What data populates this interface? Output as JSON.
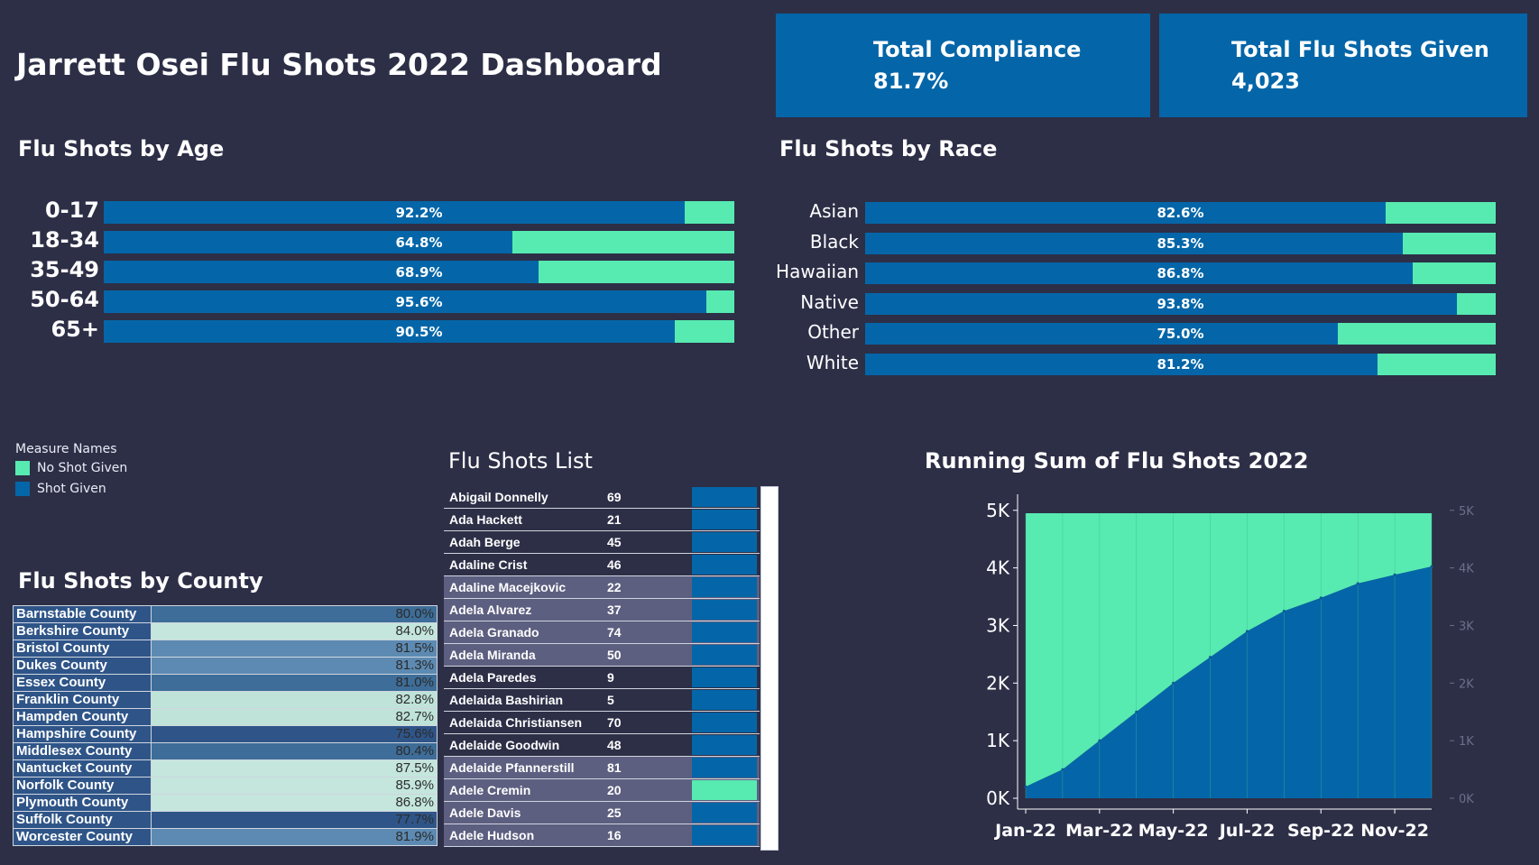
{
  "header": {
    "title": "Jarrett Osei Flu Shots 2022 Dashboard"
  },
  "kpis": [
    {
      "label": "Total Compliance",
      "value": "81.7%"
    },
    {
      "label": "Total Flu Shots Given",
      "value": "4,023"
    }
  ],
  "colors": {
    "background": "#2d2f47",
    "shot_given": "#0466a8",
    "no_shot_given": "#57eab1"
  },
  "age": {
    "title": "Flu Shots by Age",
    "rows": [
      {
        "label": "0-17",
        "value": 92.2,
        "text": "92.2%"
      },
      {
        "label": "18-34",
        "value": 64.8,
        "text": "64.8%"
      },
      {
        "label": "35-49",
        "value": 68.9,
        "text": "68.9%"
      },
      {
        "label": "50-64",
        "value": 95.6,
        "text": "95.6%"
      },
      {
        "label": "65+",
        "value": 90.5,
        "text": "90.5%"
      }
    ]
  },
  "race": {
    "title": "Flu Shots by Race",
    "rows": [
      {
        "label": "Asian",
        "value": 82.6,
        "text": "82.6%"
      },
      {
        "label": "Black",
        "value": 85.3,
        "text": "85.3%"
      },
      {
        "label": "Hawaiian",
        "value": 86.8,
        "text": "86.8%"
      },
      {
        "label": "Native",
        "value": 93.8,
        "text": "93.8%"
      },
      {
        "label": "Other",
        "value": 75.0,
        "text": "75.0%"
      },
      {
        "label": "White",
        "value": 81.2,
        "text": "81.2%"
      }
    ]
  },
  "legend": {
    "title": "Measure Names",
    "items": [
      {
        "label": "No Shot Given",
        "color": "#57eab1"
      },
      {
        "label": "Shot Given",
        "color": "#0466a8"
      }
    ]
  },
  "county": {
    "title": "Flu Shots by County",
    "rows": [
      {
        "name": "Barnstable County",
        "value": "80.0%"
      },
      {
        "name": "Berkshire County",
        "value": "84.0%"
      },
      {
        "name": "Bristol County",
        "value": "81.5%"
      },
      {
        "name": "Dukes County",
        "value": "81.3%"
      },
      {
        "name": "Essex County",
        "value": "81.0%"
      },
      {
        "name": "Franklin County",
        "value": "82.8%"
      },
      {
        "name": "Hampden County",
        "value": "82.7%"
      },
      {
        "name": "Hampshire County",
        "value": "75.6%"
      },
      {
        "name": "Middlesex County",
        "value": "80.4%"
      },
      {
        "name": "Nantucket County",
        "value": "87.5%"
      },
      {
        "name": "Norfolk County",
        "value": "85.9%"
      },
      {
        "name": "Plymouth County",
        "value": "86.8%"
      },
      {
        "name": "Suffolk County",
        "value": "77.7%"
      },
      {
        "name": "Worcester County",
        "value": "81.9%"
      }
    ]
  },
  "list": {
    "title": "Flu Shots List",
    "rows": [
      {
        "name": "Abigail Donnelly",
        "age": "69",
        "status": "given"
      },
      {
        "name": "Ada Hackett",
        "age": "21",
        "status": "given"
      },
      {
        "name": "Adah Berge",
        "age": "45",
        "status": "given"
      },
      {
        "name": "Adaline Crist",
        "age": "46",
        "status": "given"
      },
      {
        "name": "Adaline Macejkovic",
        "age": "22",
        "status": "given"
      },
      {
        "name": "Adela Alvarez",
        "age": "37",
        "status": "given"
      },
      {
        "name": "Adela Granado",
        "age": "74",
        "status": "given"
      },
      {
        "name": "Adela Miranda",
        "age": "50",
        "status": "given"
      },
      {
        "name": "Adela Paredes",
        "age": "9",
        "status": "given"
      },
      {
        "name": "Adelaida Bashirian",
        "age": "5",
        "status": "given"
      },
      {
        "name": "Adelaida Christiansen",
        "age": "70",
        "status": "given"
      },
      {
        "name": "Adelaide Goodwin",
        "age": "48",
        "status": "given"
      },
      {
        "name": "Adelaide Pfannerstill",
        "age": "81",
        "status": "given"
      },
      {
        "name": "Adele Cremin",
        "age": "20",
        "status": "not_given"
      },
      {
        "name": "Adele Davis",
        "age": "25",
        "status": "given"
      },
      {
        "name": "Adele Hudson",
        "age": "16",
        "status": "given"
      }
    ]
  },
  "running": {
    "title": "Running Sum of Flu Shots 2022",
    "y_ticks": [
      "0K",
      "1K",
      "2K",
      "3K",
      "4K",
      "5K"
    ],
    "x_ticks": [
      "Jan-22",
      "Mar-22",
      "May-22",
      "Jul-22",
      "Sep-22",
      "Nov-22"
    ]
  },
  "chart_data": {
    "type": "area",
    "title": "Running Sum of Flu Shots 2022",
    "x": [
      "Jan-22",
      "Feb-22",
      "Mar-22",
      "Apr-22",
      "May-22",
      "Jun-22",
      "Jul-22",
      "Aug-22",
      "Sep-22",
      "Oct-22",
      "Nov-22",
      "Dec-22"
    ],
    "series": [
      {
        "name": "Shot Given",
        "values": [
          200,
          500,
          1000,
          1500,
          2000,
          2450,
          2900,
          3250,
          3480,
          3730,
          3880,
          4023
        ]
      },
      {
        "name": "No Shot Given",
        "values": [
          4950,
          4950,
          4950,
          4950,
          4950,
          4950,
          4950,
          4950,
          4950,
          4950,
          4950,
          4950
        ]
      }
    ],
    "ylim": [
      0,
      5000
    ],
    "y_ticks": [
      "0K",
      "1K",
      "2K",
      "3K",
      "4K",
      "5K"
    ],
    "x_ticks": [
      "Jan-22",
      "Mar-22",
      "May-22",
      "Jul-22",
      "Sep-22",
      "Nov-22"
    ]
  }
}
